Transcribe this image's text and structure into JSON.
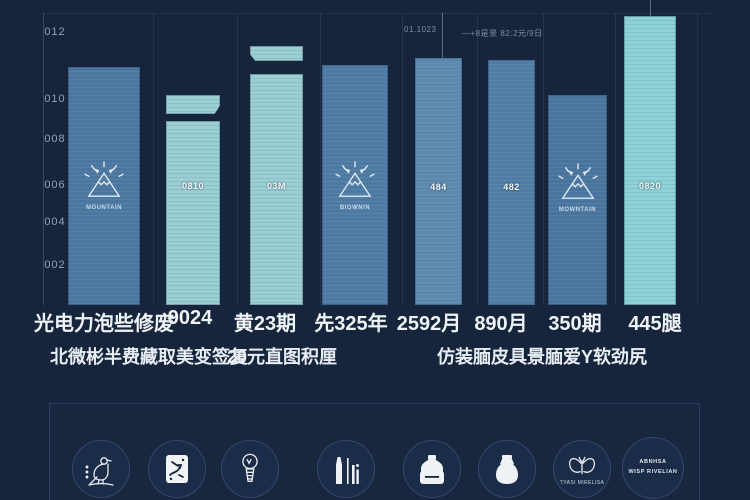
{
  "colors": {
    "background": "#16253b",
    "steel_blue_bar": "#4d7aa4",
    "steel_blue_light_bar": "#5d88ae",
    "teal_bar": "#9ccfd4",
    "teal_bright_bar": "#8ed2d7",
    "text_primary": "#edf3f7",
    "text_muted": "#8fa0b2",
    "panel_border": "#2a4161"
  },
  "annotations": {
    "a1": "01.1023",
    "a2": "—+8是景 82:2元/9日"
  },
  "bars": [
    {
      "caption": "MOUNTAIN"
    },
    {
      "inner": "0810"
    },
    {
      "inner": "03M"
    },
    {
      "caption": "BIOWNIN"
    },
    {
      "inner": "484"
    },
    {
      "inner": "482"
    },
    {
      "caption": "MOWNTAIN"
    },
    {
      "inner": "0820"
    }
  ],
  "notes": {
    "left": "北微彬半费藏取美变签复",
    "middle": "20元直图积厘",
    "right": "仿装腼皮具景腼爱Y软劲尻"
  },
  "footer": {
    "butterfly_caption": "TYASI MIRELISA",
    "badge_line1": "ABNHSA",
    "badge_line2": "WISP RIVELIAN"
  },
  "chart_data": {
    "type": "bar",
    "title": "",
    "xlabel": "",
    "ylabel": "",
    "categories": [
      "光电力泡些修废",
      "9024",
      "黄23期",
      "先325年",
      "2592月",
      "890月",
      "350期",
      "445腿"
    ],
    "values": [
      10.2,
      9.0,
      11.1,
      10.3,
      10.6,
      10.5,
      9.0,
      12.4
    ],
    "bar_colors": [
      "steel",
      "teal",
      "teal",
      "steel",
      "steel-light",
      "steel",
      "steel",
      "teal-bright"
    ],
    "y_tick_labels": [
      "012",
      "010",
      "008",
      "006",
      "004",
      "002"
    ],
    "ylim": [
      0,
      13
    ],
    "grid": "faint vertical column separators on dark navy background",
    "legend": "none",
    "bar_texture": "horizontal pinstripes",
    "notes_on_bars": "bars 1,4,7 carry a mountain-with-sun icon; bars 2,3 have a detached cap segment on top"
  }
}
